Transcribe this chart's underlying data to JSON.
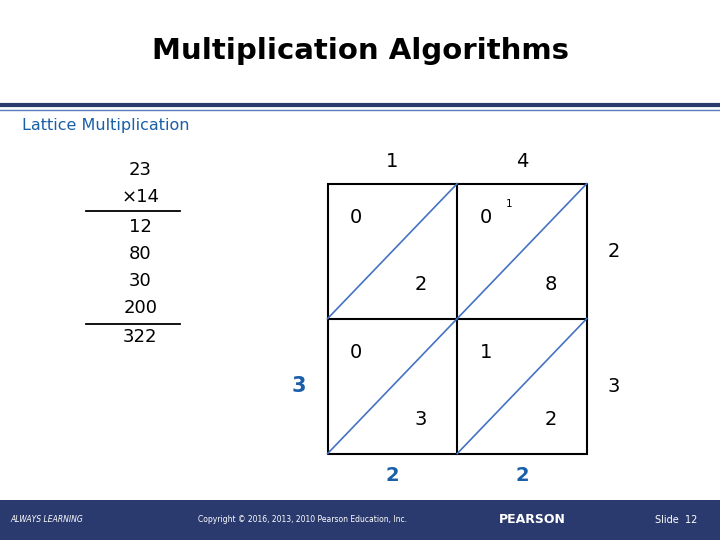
{
  "title": "Multiplication Algorithms",
  "subtitle": "Lattice Multiplication",
  "subtitle_color": "#1a5fa8",
  "black_color": "#000000",
  "blue_color": "#4472c4",
  "footer_bg": "#2b3a6e",
  "footer_left": "ALWAYS LEARNING",
  "footer_center": "Copyright © 2016, 2013, 2010 Pearson Education, Inc.",
  "footer_pearson": "PEARSON",
  "footer_slide": "Slide  12",
  "top_numbers": [
    "1",
    "4"
  ],
  "right_numbers": [
    "2",
    "3"
  ],
  "bottom_numbers": [
    "2",
    "2"
  ],
  "left_number": "3",
  "mult_lines": [
    "23",
    "×14",
    "12",
    "80",
    "30",
    "200",
    "322"
  ],
  "cell_data": [
    [
      1,
      0,
      "0",
      "2",
      ""
    ],
    [
      1,
      1,
      "0",
      "8",
      "1"
    ],
    [
      0,
      0,
      "0",
      "3",
      ""
    ],
    [
      0,
      1,
      "1",
      "2",
      ""
    ]
  ],
  "separator_dark": "#2b3a6e",
  "separator_light": "#6080b0",
  "gl": 0.455,
  "gb": 0.16,
  "gw": 0.36,
  "gh": 0.5
}
